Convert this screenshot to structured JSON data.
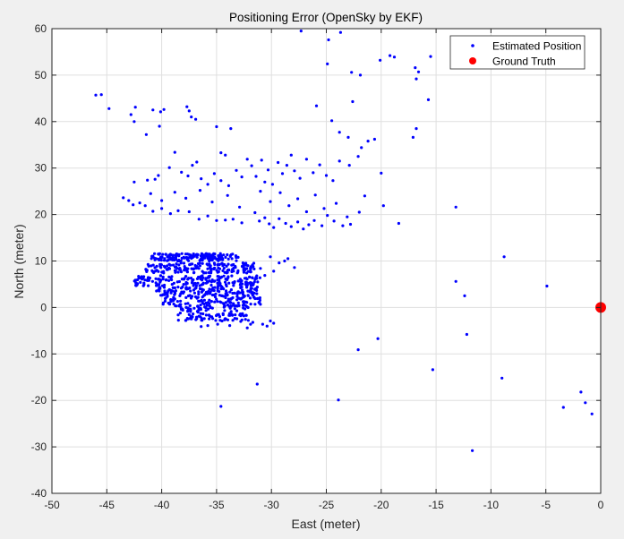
{
  "chart_data": {
    "type": "scatter",
    "title": "Positioning Error (OpenSky by EKF)",
    "xlabel": "East (meter)",
    "ylabel": "North (meter)",
    "xlim": [
      -50,
      0
    ],
    "ylim": [
      -40,
      60
    ],
    "xticks": [
      -50,
      -45,
      -40,
      -35,
      -30,
      -25,
      -20,
      -15,
      -10,
      -5,
      0
    ],
    "yticks": [
      -40,
      -30,
      -20,
      -10,
      0,
      10,
      20,
      30,
      40,
      50,
      60
    ],
    "grid": true,
    "legend_position": "top-right",
    "colors": {
      "estimated": "#0000ff",
      "truth": "#ff0000",
      "grid": "#dfdfdf",
      "axes": "#262626"
    },
    "series": [
      {
        "name": "Estimated Position",
        "marker": "dot",
        "points": [
          [
            -46.0,
            45.7
          ],
          [
            -45.5,
            45.8
          ],
          [
            -44.8,
            42.8
          ],
          [
            -42.8,
            41.5
          ],
          [
            -42.4,
            43.1
          ],
          [
            -42.5,
            40.0
          ],
          [
            -41.4,
            37.2
          ],
          [
            -40.8,
            42.5
          ],
          [
            -40.1,
            42.1
          ],
          [
            -40.2,
            39.0
          ],
          [
            -39.8,
            42.6
          ],
          [
            -37.7,
            43.2
          ],
          [
            -37.5,
            42.3
          ],
          [
            -37.3,
            41.0
          ],
          [
            -36.9,
            40.5
          ],
          [
            -35.0,
            38.9
          ],
          [
            -34.6,
            33.3
          ],
          [
            -33.7,
            38.5
          ],
          [
            -34.2,
            32.8
          ],
          [
            -42.5,
            27.0
          ],
          [
            -41.3,
            27.4
          ],
          [
            -40.6,
            27.6
          ],
          [
            -40.3,
            28.4
          ],
          [
            -39.3,
            30.1
          ],
          [
            -38.8,
            33.4
          ],
          [
            -38.2,
            29.1
          ],
          [
            -37.6,
            28.3
          ],
          [
            -37.2,
            30.6
          ],
          [
            -36.8,
            31.3
          ],
          [
            -36.4,
            27.7
          ],
          [
            -35.8,
            26.5
          ],
          [
            -35.2,
            28.8
          ],
          [
            -34.6,
            27.3
          ],
          [
            -33.9,
            26.2
          ],
          [
            -33.2,
            29.5
          ],
          [
            -32.7,
            28.1
          ],
          [
            -32.2,
            31.9
          ],
          [
            -31.8,
            30.5
          ],
          [
            -31.4,
            28.2
          ],
          [
            -30.9,
            31.7
          ],
          [
            -30.6,
            27.0
          ],
          [
            -30.3,
            29.6
          ],
          [
            -29.9,
            26.5
          ],
          [
            -29.4,
            31.2
          ],
          [
            -29.0,
            28.8
          ],
          [
            -28.6,
            30.6
          ],
          [
            -28.2,
            32.8
          ],
          [
            -27.9,
            29.4
          ],
          [
            -27.4,
            27.8
          ],
          [
            -26.8,
            31.9
          ],
          [
            -26.2,
            29.0
          ],
          [
            -25.6,
            30.7
          ],
          [
            -25.0,
            28.4
          ],
          [
            -24.4,
            27.3
          ],
          [
            -23.8,
            31.5
          ],
          [
            -43.5,
            23.6
          ],
          [
            -43.0,
            23.0
          ],
          [
            -42.6,
            22.1
          ],
          [
            -42.0,
            22.5
          ],
          [
            -41.5,
            21.9
          ],
          [
            -40.8,
            20.7
          ],
          [
            -40.0,
            21.3
          ],
          [
            -39.2,
            20.2
          ],
          [
            -38.5,
            20.8
          ],
          [
            -37.5,
            20.6
          ],
          [
            -36.6,
            19.0
          ],
          [
            -35.8,
            19.7
          ],
          [
            -35.0,
            18.7
          ],
          [
            -34.2,
            18.8
          ],
          [
            -33.5,
            19.0
          ],
          [
            -32.7,
            18.2
          ],
          [
            -31.5,
            20.4
          ],
          [
            -31.1,
            18.6
          ],
          [
            -30.6,
            19.3
          ],
          [
            -30.2,
            18.0
          ],
          [
            -29.8,
            17.2
          ],
          [
            -29.3,
            19.1
          ],
          [
            -28.7,
            18.1
          ],
          [
            -28.2,
            17.4
          ],
          [
            -27.6,
            18.4
          ],
          [
            -27.1,
            16.9
          ],
          [
            -26.6,
            17.8
          ],
          [
            -26.1,
            18.7
          ],
          [
            -25.4,
            17.6
          ],
          [
            -24.9,
            19.8
          ],
          [
            -24.3,
            18.6
          ],
          [
            -23.5,
            17.6
          ],
          [
            -22.8,
            17.9
          ],
          [
            -22.0,
            20.5
          ],
          [
            -41.0,
            24.5
          ],
          [
            -40.0,
            23.0
          ],
          [
            -38.8,
            24.8
          ],
          [
            -37.8,
            23.5
          ],
          [
            -36.5,
            25.2
          ],
          [
            -35.4,
            22.7
          ],
          [
            -34.0,
            24.1
          ],
          [
            -32.9,
            21.6
          ],
          [
            -31.0,
            25.0
          ],
          [
            -30.1,
            22.8
          ],
          [
            -29.2,
            24.7
          ],
          [
            -28.4,
            21.9
          ],
          [
            -27.6,
            23.4
          ],
          [
            -26.8,
            20.6
          ],
          [
            -26.0,
            24.2
          ],
          [
            -25.2,
            21.3
          ],
          [
            -24.1,
            22.4
          ],
          [
            -23.1,
            19.5
          ],
          [
            -27.3,
            59.5
          ],
          [
            -24.8,
            57.6
          ],
          [
            -23.7,
            59.2
          ],
          [
            -24.9,
            52.4
          ],
          [
            -22.7,
            50.6
          ],
          [
            -21.9,
            50.0
          ],
          [
            -20.1,
            53.2
          ],
          [
            -19.2,
            54.2
          ],
          [
            -18.8,
            53.9
          ],
          [
            -16.9,
            51.6
          ],
          [
            -16.6,
            50.7
          ],
          [
            -16.8,
            49.2
          ],
          [
            -15.5,
            54.0
          ],
          [
            -15.7,
            44.7
          ],
          [
            -16.8,
            38.5
          ],
          [
            -17.1,
            36.6
          ],
          [
            -22.6,
            44.3
          ],
          [
            -22.1,
            32.5
          ],
          [
            -22.9,
            30.6
          ],
          [
            -21.8,
            34.4
          ],
          [
            -21.2,
            35.8
          ],
          [
            -20.6,
            36.2
          ],
          [
            -20.0,
            28.9
          ],
          [
            -21.5,
            24.0
          ],
          [
            -19.8,
            21.9
          ],
          [
            -18.4,
            18.1
          ],
          [
            -13.2,
            21.6
          ],
          [
            -25.9,
            43.4
          ],
          [
            -24.5,
            40.2
          ],
          [
            -23.8,
            37.7
          ],
          [
            -23.0,
            36.6
          ],
          [
            -8.8,
            10.9
          ],
          [
            -13.2,
            5.6
          ],
          [
            -12.4,
            2.5
          ],
          [
            -4.9,
            4.6
          ],
          [
            -12.2,
            -5.8
          ],
          [
            -15.3,
            -13.4
          ],
          [
            -22.1,
            -9.1
          ],
          [
            -20.3,
            -6.7
          ],
          [
            -23.9,
            -19.9
          ],
          [
            -31.3,
            -16.5
          ],
          [
            -34.6,
            -21.3
          ],
          [
            -11.7,
            -30.8
          ],
          [
            -9.0,
            -15.2
          ],
          [
            -3.4,
            -21.5
          ],
          [
            -1.8,
            -18.2
          ],
          [
            -1.4,
            -20.5
          ],
          [
            -0.8,
            -22.9
          ],
          [
            -35.8,
            -3.9
          ],
          [
            -36.4,
            -4.1
          ],
          [
            -34.9,
            -3.6
          ],
          [
            -33.8,
            -3.9
          ],
          [
            -32.8,
            -3.0
          ],
          [
            -31.7,
            -3.2
          ],
          [
            -30.8,
            -3.6
          ],
          [
            -30.1,
            -2.9
          ],
          [
            -29.8,
            -3.4
          ],
          [
            -30.4,
            -4.0
          ],
          [
            -32.2,
            -4.4
          ],
          [
            -31.9,
            -3.6
          ],
          [
            -37.2,
            -2.0
          ],
          [
            -38.5,
            -1.6
          ],
          [
            -34.5,
            -2.9
          ],
          [
            -28.5,
            10.5
          ],
          [
            -28.8,
            10.0
          ],
          [
            -29.3,
            9.6
          ],
          [
            -29.8,
            7.8
          ],
          [
            -30.6,
            6.9
          ],
          [
            -31.0,
            8.4
          ],
          [
            -30.1,
            10.9
          ],
          [
            -27.9,
            8.6
          ]
        ]
      },
      {
        "name": "Ground Truth",
        "marker": "circle",
        "points": [
          [
            0,
            0
          ]
        ]
      }
    ],
    "cluster_note_hidden": "",
    "cluster_bands": [
      [
        -41.0,
        -33.0,
        10.0,
        11.6,
        160
      ],
      [
        -41.5,
        -31.5,
        7.4,
        9.6,
        160
      ],
      [
        -42.5,
        -31.0,
        4.6,
        6.9,
        170
      ],
      [
        -40.5,
        -31.0,
        2.5,
        4.5,
        130
      ],
      [
        -40.0,
        -31.0,
        0.3,
        2.5,
        110
      ],
      [
        -38.5,
        -32.0,
        -2.8,
        0.4,
        110
      ]
    ]
  }
}
